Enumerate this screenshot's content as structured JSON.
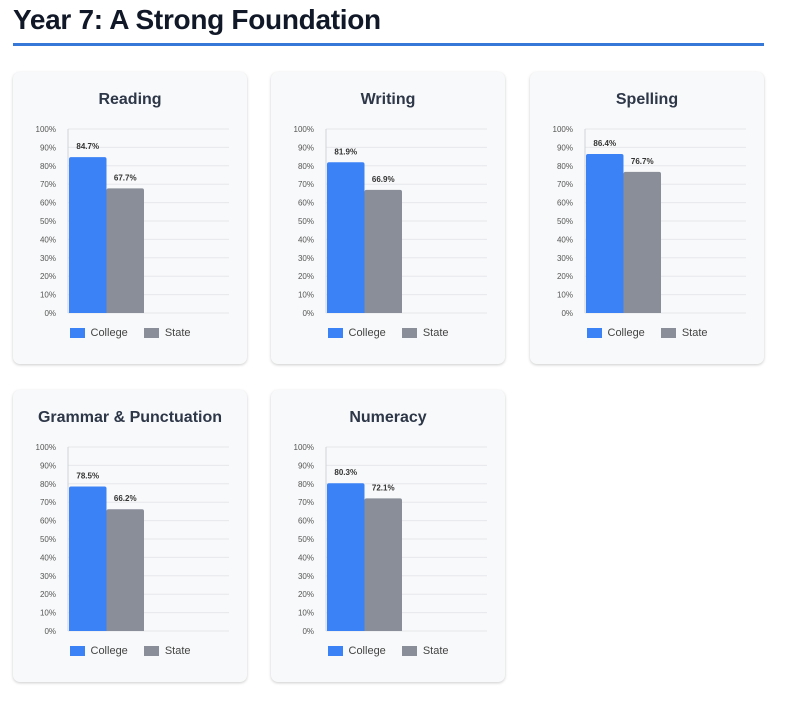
{
  "page": {
    "title": "Year 7: A Strong Foundation"
  },
  "colors": {
    "college": "#3b82f6",
    "state": "#898e99",
    "accent": "#3578d8"
  },
  "chart_data": [
    {
      "type": "bar",
      "title": "Reading",
      "categories": [
        ""
      ],
      "series": [
        {
          "name": "College",
          "values": [
            84.7
          ],
          "labels": [
            "84.7%"
          ]
        },
        {
          "name": "State",
          "values": [
            67.7
          ],
          "labels": [
            "67.7%"
          ]
        }
      ],
      "ylim": [
        0,
        100
      ],
      "yticks": [
        "0%",
        "10%",
        "20%",
        "30%",
        "40%",
        "50%",
        "60%",
        "70%",
        "80%",
        "90%",
        "100%"
      ],
      "legend": "bottom",
      "grid": true
    },
    {
      "type": "bar",
      "title": "Writing",
      "categories": [
        ""
      ],
      "series": [
        {
          "name": "College",
          "values": [
            81.9
          ],
          "labels": [
            "81.9%"
          ]
        },
        {
          "name": "State",
          "values": [
            66.9
          ],
          "labels": [
            "66.9%"
          ]
        }
      ],
      "ylim": [
        0,
        100
      ],
      "yticks": [
        "0%",
        "10%",
        "20%",
        "30%",
        "40%",
        "50%",
        "60%",
        "70%",
        "80%",
        "90%",
        "100%"
      ],
      "legend": "bottom",
      "grid": true
    },
    {
      "type": "bar",
      "title": "Spelling",
      "categories": [
        ""
      ],
      "series": [
        {
          "name": "College",
          "values": [
            86.4
          ],
          "labels": [
            "86.4%"
          ]
        },
        {
          "name": "State",
          "values": [
            76.7
          ],
          "labels": [
            "76.7%"
          ]
        }
      ],
      "ylim": [
        0,
        100
      ],
      "yticks": [
        "0%",
        "10%",
        "20%",
        "30%",
        "40%",
        "50%",
        "60%",
        "70%",
        "80%",
        "90%",
        "100%"
      ],
      "legend": "bottom",
      "grid": true
    },
    {
      "type": "bar",
      "title": "Grammar & Punctuation",
      "categories": [
        ""
      ],
      "series": [
        {
          "name": "College",
          "values": [
            78.5
          ],
          "labels": [
            "78.5%"
          ]
        },
        {
          "name": "State",
          "values": [
            66.2
          ],
          "labels": [
            "66.2%"
          ]
        }
      ],
      "ylim": [
        0,
        100
      ],
      "yticks": [
        "0%",
        "10%",
        "20%",
        "30%",
        "40%",
        "50%",
        "60%",
        "70%",
        "80%",
        "90%",
        "100%"
      ],
      "legend": "bottom",
      "grid": true
    },
    {
      "type": "bar",
      "title": "Numeracy",
      "categories": [
        ""
      ],
      "series": [
        {
          "name": "College",
          "values": [
            80.3
          ],
          "labels": [
            "80.3%"
          ]
        },
        {
          "name": "State",
          "values": [
            72.1
          ],
          "labels": [
            "72.1%"
          ]
        }
      ],
      "ylim": [
        0,
        100
      ],
      "yticks": [
        "0%",
        "10%",
        "20%",
        "30%",
        "40%",
        "50%",
        "60%",
        "70%",
        "80%",
        "90%",
        "100%"
      ],
      "legend": "bottom",
      "grid": true
    }
  ]
}
